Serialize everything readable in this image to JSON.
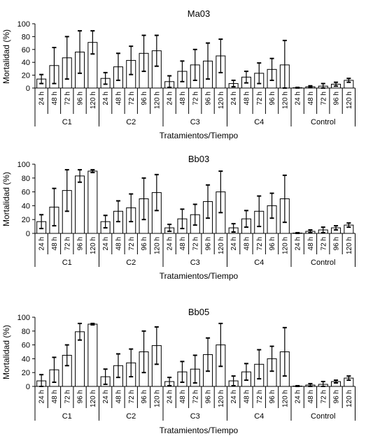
{
  "chart_data": [
    {
      "type": "bar",
      "title": "Ma03",
      "xlabel": "Tratamientos/Tiempo",
      "ylabel": "Mortalidad (%)",
      "ylim": [
        0,
        100
      ],
      "yticks": [
        "0",
        "20",
        "40",
        "60",
        "80",
        "100"
      ],
      "times": [
        "24 h",
        "48 h",
        "72 h",
        "96 h",
        "120 h"
      ],
      "groups": [
        "C1",
        "C2",
        "C3",
        "C4",
        "Control"
      ],
      "values": [
        14,
        35,
        47,
        56,
        71,
        15,
        33,
        43,
        54,
        58,
        10,
        26,
        36,
        42,
        50,
        7,
        17,
        23,
        29,
        36,
        0.5,
        2,
        3,
        6,
        12
      ],
      "errors": [
        7,
        28,
        33,
        33,
        18,
        9,
        21,
        22,
        28,
        24,
        9,
        16,
        24,
        28,
        26,
        5,
        9,
        16,
        17,
        38,
        0.5,
        1.5,
        4,
        3,
        3
      ]
    },
    {
      "type": "bar",
      "title": "Bb03",
      "xlabel": "Tratamientos/Tiempo",
      "ylabel": "Mortalidad (%)",
      "ylim": [
        0,
        100
      ],
      "yticks": [
        "0",
        "20",
        "40",
        "60",
        "80",
        "100"
      ],
      "times": [
        "24 h",
        "48 h",
        "72 h",
        "96 h",
        "120 h"
      ],
      "groups": [
        "C1",
        "C2",
        "C3",
        "C4",
        "Control"
      ],
      "values": [
        17,
        38,
        62,
        83,
        90,
        17,
        32,
        37,
        50,
        59,
        8,
        21,
        27,
        46,
        60,
        8,
        21,
        32,
        40,
        50,
        0.5,
        3,
        5,
        8,
        12
      ],
      "errors": [
        10,
        27,
        30,
        9,
        2,
        9,
        15,
        20,
        30,
        26,
        5,
        14,
        15,
        24,
        30,
        6,
        12,
        22,
        18,
        34,
        0.5,
        2,
        4,
        3,
        3
      ]
    },
    {
      "type": "bar",
      "title": "Bb05",
      "xlabel": "Tratamientos/Tiempo",
      "ylabel": "Mortalidad (%)",
      "ylim": [
        0,
        100
      ],
      "yticks": [
        "0",
        "20",
        "40",
        "60",
        "80",
        "100"
      ],
      "times": [
        "24 h",
        "48 h",
        "72 h",
        "96 h",
        "120 h"
      ],
      "groups": [
        "C1",
        "C2",
        "C3",
        "C4",
        "Control"
      ],
      "values": [
        8,
        24,
        45,
        79,
        90,
        14,
        30,
        34,
        50,
        59,
        7,
        21,
        25,
        46,
        60,
        8,
        21,
        32,
        40,
        50,
        0.5,
        2,
        3,
        7,
        12
      ],
      "errors": [
        9,
        18,
        15,
        12,
        1,
        11,
        17,
        20,
        30,
        27,
        6,
        15,
        20,
        24,
        31,
        7,
        12,
        21,
        18,
        35,
        0.5,
        2,
        4,
        2,
        3
      ]
    }
  ]
}
